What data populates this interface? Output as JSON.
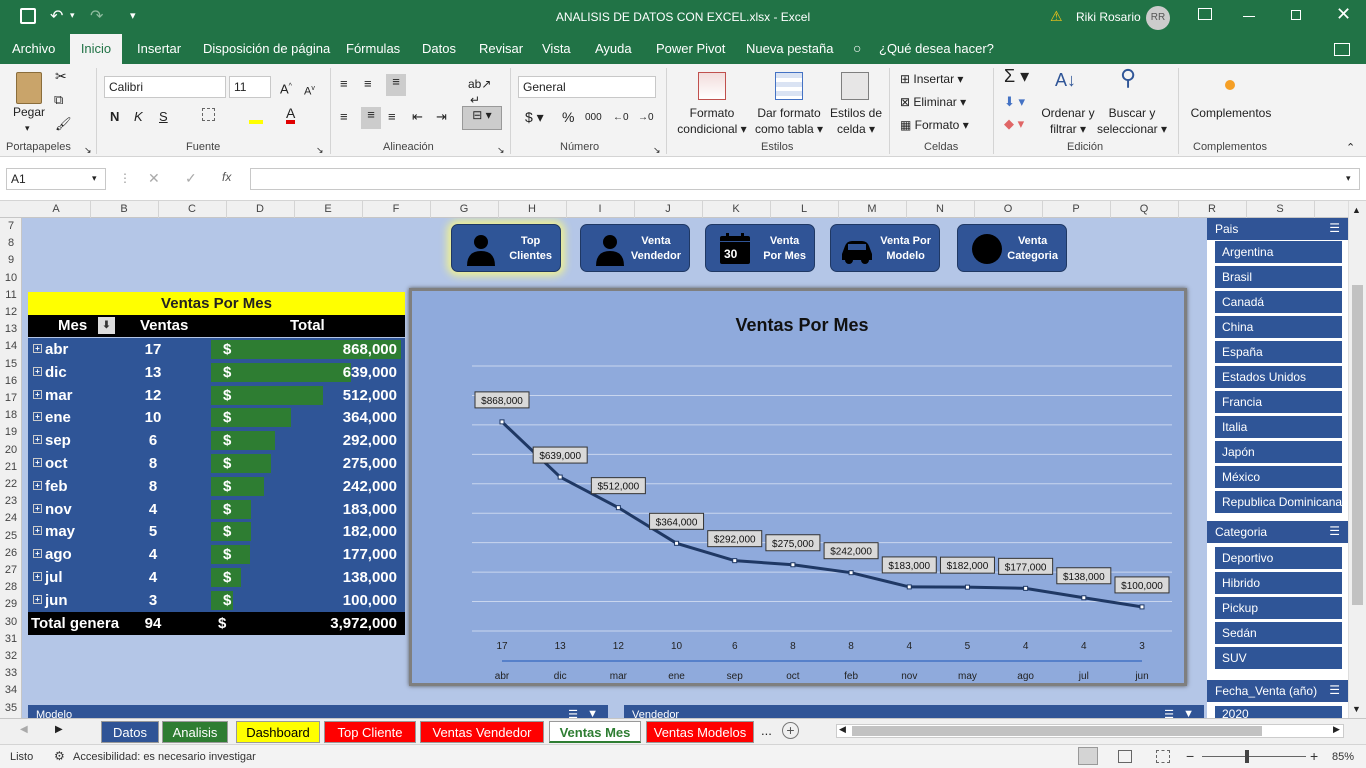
{
  "window": {
    "title": "ANALISIS DE DATOS CON EXCEL.xlsx  -  Excel",
    "user": "Riki Rosario",
    "initials": "RR"
  },
  "menu": [
    "Archivo",
    "Inicio",
    "Insertar",
    "Disposición de página",
    "Fórmulas",
    "Datos",
    "Revisar",
    "Vista",
    "Ayuda",
    "Power Pivot",
    "Nueva pestaña"
  ],
  "tell_me": "¿Qué desea hacer?",
  "ribbon": {
    "paste": "Pegar",
    "font_name": "Calibri",
    "font_size": "11",
    "number_format": "General",
    "groups": [
      "Portapapeles",
      "Fuente",
      "Alineación",
      "Número",
      "Estilos",
      "Celdas",
      "Edición",
      "Complementos"
    ],
    "cond_format": [
      "Formato",
      "condicional"
    ],
    "table_format": [
      "Dar formato",
      "como tabla"
    ],
    "cell_styles": [
      "Estilos de",
      "celda"
    ],
    "insert": "Insertar",
    "delete": "Eliminar",
    "format": "Formato",
    "sort": [
      "Ordenar y",
      "filtrar"
    ],
    "find": [
      "Buscar y",
      "seleccionar"
    ],
    "addins": "Complementos"
  },
  "name_box": "A1",
  "columns": [
    "A",
    "B",
    "C",
    "D",
    "E",
    "F",
    "G",
    "H",
    "I",
    "J",
    "K",
    "L",
    "M",
    "N",
    "O",
    "P",
    "Q",
    "R",
    "S"
  ],
  "rows": [
    "7",
    "8",
    "9",
    "10",
    "11",
    "12",
    "13",
    "14",
    "15",
    "16",
    "17",
    "18",
    "19",
    "20",
    "21",
    "22",
    "23",
    "24",
    "25",
    "26",
    "27",
    "28",
    "29",
    "30",
    "31",
    "32",
    "33",
    "34",
    "35"
  ],
  "nav_buttons": [
    {
      "l1": "Top",
      "l2": "Clientes"
    },
    {
      "l1": "Venta",
      "l2": "Vendedor"
    },
    {
      "l1": "Venta",
      "l2": "Por Mes",
      "day": "30"
    },
    {
      "l1": "Venta Por",
      "l2": "Modelo"
    },
    {
      "l1": "Venta",
      "l2": "Categoria"
    }
  ],
  "pivot": {
    "title": "Ventas Por Mes",
    "h_mes": "Mes",
    "h_ventas": "Ventas",
    "h_total": "Total",
    "currency": "$",
    "rows": [
      {
        "mes": "abr",
        "ventas": "17",
        "total": "868,000",
        "v": 868000
      },
      {
        "mes": "dic",
        "ventas": "13",
        "total": "639,000",
        "v": 639000
      },
      {
        "mes": "mar",
        "ventas": "12",
        "total": "512,000",
        "v": 512000
      },
      {
        "mes": "ene",
        "ventas": "10",
        "total": "364,000",
        "v": 364000
      },
      {
        "mes": "sep",
        "ventas": "6",
        "total": "292,000",
        "v": 292000
      },
      {
        "mes": "oct",
        "ventas": "8",
        "total": "275,000",
        "v": 275000
      },
      {
        "mes": "feb",
        "ventas": "8",
        "total": "242,000",
        "v": 242000
      },
      {
        "mes": "nov",
        "ventas": "4",
        "total": "183,000",
        "v": 183000
      },
      {
        "mes": "may",
        "ventas": "5",
        "total": "182,000",
        "v": 182000
      },
      {
        "mes": "ago",
        "ventas": "4",
        "total": "177,000",
        "v": 177000
      },
      {
        "mes": "jul",
        "ventas": "4",
        "total": "138,000",
        "v": 138000
      },
      {
        "mes": "jun",
        "ventas": "3",
        "total": "100,000",
        "v": 100000
      }
    ],
    "total_label": "Total genera",
    "total_ventas": "94",
    "total_value": "3,972,000"
  },
  "chart_data": {
    "type": "line",
    "title": "Ventas Por Mes",
    "categories": [
      "abr",
      "dic",
      "mar",
      "ene",
      "sep",
      "oct",
      "feb",
      "nov",
      "may",
      "ago",
      "jul",
      "jun"
    ],
    "counts": [
      "17",
      "13",
      "12",
      "10",
      "6",
      "8",
      "8",
      "4",
      "5",
      "4",
      "4",
      "3"
    ],
    "values": [
      868000,
      639000,
      512000,
      364000,
      292000,
      275000,
      242000,
      183000,
      182000,
      177000,
      138000,
      100000
    ],
    "labels": [
      "$868,000",
      "$639,000",
      "$512,000",
      "$364,000",
      "$292,000",
      "$275,000",
      "$242,000",
      "$183,000",
      "$182,000",
      "$177,000",
      "$138,000",
      "$100,000"
    ],
    "ylim": [
      0,
      1100000
    ],
    "grid": true,
    "line_color": "#1f3864"
  },
  "slicers": {
    "pais_title": "Pais",
    "pais": [
      "Argentina",
      "Brasil",
      "Canadá",
      "China",
      "España",
      "Estados Unidos",
      "Francia",
      "Italia",
      "Japón",
      "México",
      "Republica Dominicana"
    ],
    "cat_title": "Categoria",
    "cat": [
      "Deportivo",
      "Hibrido",
      "Pickup",
      "Sedán",
      "SUV"
    ],
    "fecha_title": "Fecha_Venta (año)",
    "fecha_first": "2020",
    "modelo_title": "Modelo",
    "vendedor_title": "Vendedor"
  },
  "sheet_tabs": [
    {
      "name": "Datos",
      "bg": "#305496",
      "fg": "#fff"
    },
    {
      "name": "Analisis",
      "bg": "#2e7d32",
      "fg": "#fff"
    },
    {
      "name": "Dashboard",
      "bg": "#ffff00",
      "fg": "#000"
    },
    {
      "name": "Top Cliente",
      "bg": "#ff0000",
      "fg": "#fff"
    },
    {
      "name": "Ventas Vendedor",
      "bg": "#ff0000",
      "fg": "#fff"
    },
    {
      "name": "Ventas Mes",
      "bg": "#ffffff",
      "fg": "#2e7d32"
    },
    {
      "name": "Ventas Modelos",
      "bg": "#ff0000",
      "fg": "#fff"
    }
  ],
  "status": {
    "ready": "Listo",
    "access": "Accesibilidad: es necesario investigar",
    "zoom": "85%"
  }
}
